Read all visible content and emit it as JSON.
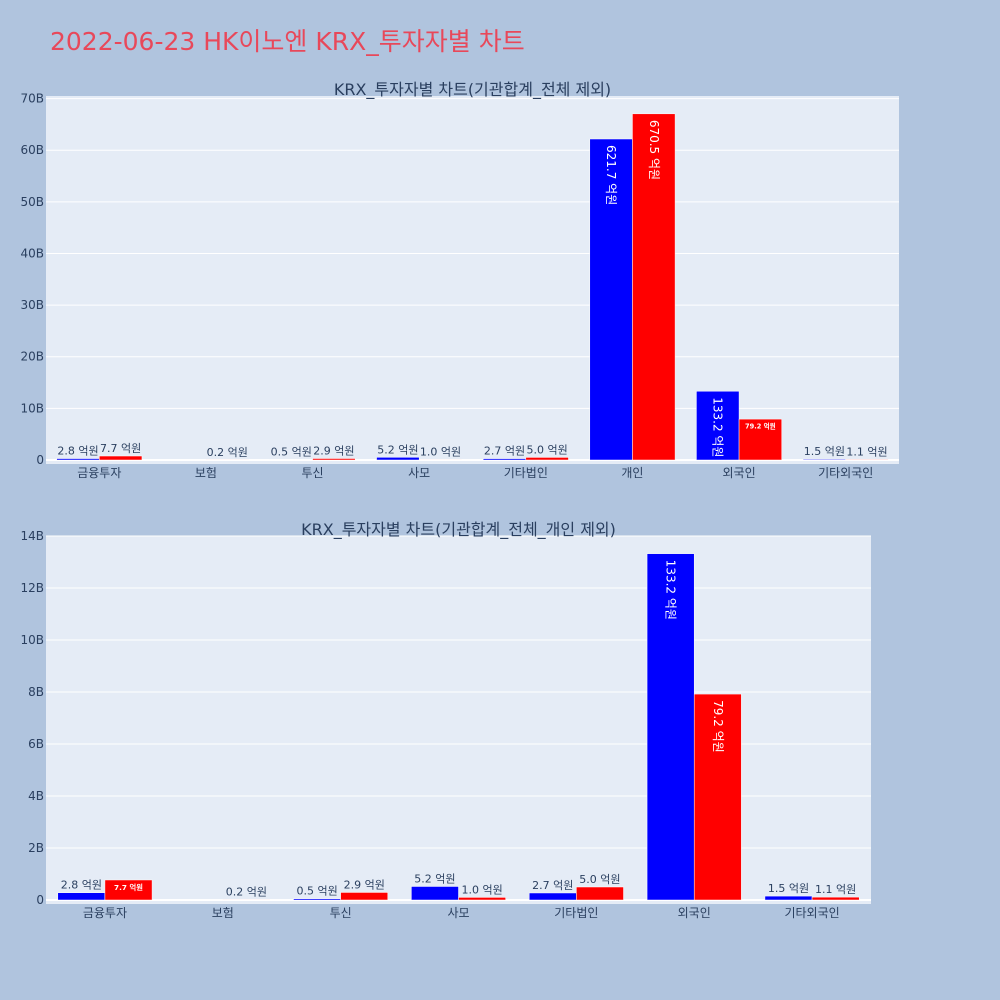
{
  "page_title": "2022-06-23 HK이노엔 KRX_투자자별 차트",
  "chart_data": [
    {
      "type": "bar",
      "title": "KRX_투자자별 차트(기관합계_전체 제외)",
      "categories": [
        "금융투자",
        "보험",
        "투신",
        "사모",
        "기타법인",
        "개인",
        "외국인",
        "기타외국인"
      ],
      "series": [
        {
          "color": "#0000ff",
          "values": [
            280000000,
            0,
            50000000,
            520000000,
            270000000,
            62170000000,
            13320000000,
            150000000
          ],
          "labels": [
            "2.8 억원",
            "",
            "0.5 억원",
            "5.2 억원",
            "2.7 억원",
            "621.7 억원",
            "133.2 억원",
            "1.5 억원"
          ]
        },
        {
          "color": "#ff0000",
          "values": [
            770000000,
            20000000,
            290000000,
            100000000,
            500000000,
            67050000000,
            7920000000,
            110000000
          ],
          "labels": [
            "7.7 억원",
            "0.2 억원",
            "2.9 억원",
            "1.0 억원",
            "5.0 억원",
            "670.5 억원",
            "79.2 억원",
            "1.1 억원"
          ]
        }
      ],
      "ylim": [
        0,
        70500000000
      ],
      "yticks": [
        0,
        10000000000,
        20000000000,
        30000000000,
        40000000000,
        50000000000,
        60000000000,
        70000000000
      ],
      "ytick_labels": [
        "0",
        "10B",
        "20B",
        "30B",
        "40B",
        "50B",
        "60B",
        "70B"
      ],
      "grid": true
    },
    {
      "type": "bar",
      "title": "KRX_투자자별 차트(기관합계_전체_개인 제외)",
      "categories": [
        "금융투자",
        "보험",
        "투신",
        "사모",
        "기타법인",
        "외국인",
        "기타외국인"
      ],
      "series": [
        {
          "color": "#0000ff",
          "values": [
            280000000,
            0,
            50000000,
            520000000,
            270000000,
            13320000000,
            150000000
          ],
          "labels": [
            "2.8 억원",
            "",
            "0.5 억원",
            "5.2 억원",
            "2.7 억원",
            "133.2 억원",
            "1.5 억원"
          ]
        },
        {
          "color": "#ff0000",
          "values": [
            770000000,
            20000000,
            290000000,
            100000000,
            500000000,
            7920000000,
            110000000
          ],
          "labels": [
            "7.7 억원",
            "0.2 억원",
            "2.9 억원",
            "1.0 억원",
            "5.0 억원",
            "79.2 억원",
            "1.1 억원"
          ]
        }
      ],
      "ylim": [
        0,
        14000000000
      ],
      "yticks": [
        0,
        2000000000,
        4000000000,
        6000000000,
        8000000000,
        10000000000,
        12000000000,
        14000000000
      ],
      "ytick_labels": [
        "0",
        "2B",
        "4B",
        "6B",
        "8B",
        "10B",
        "12B",
        "14B"
      ],
      "grid": true
    }
  ]
}
